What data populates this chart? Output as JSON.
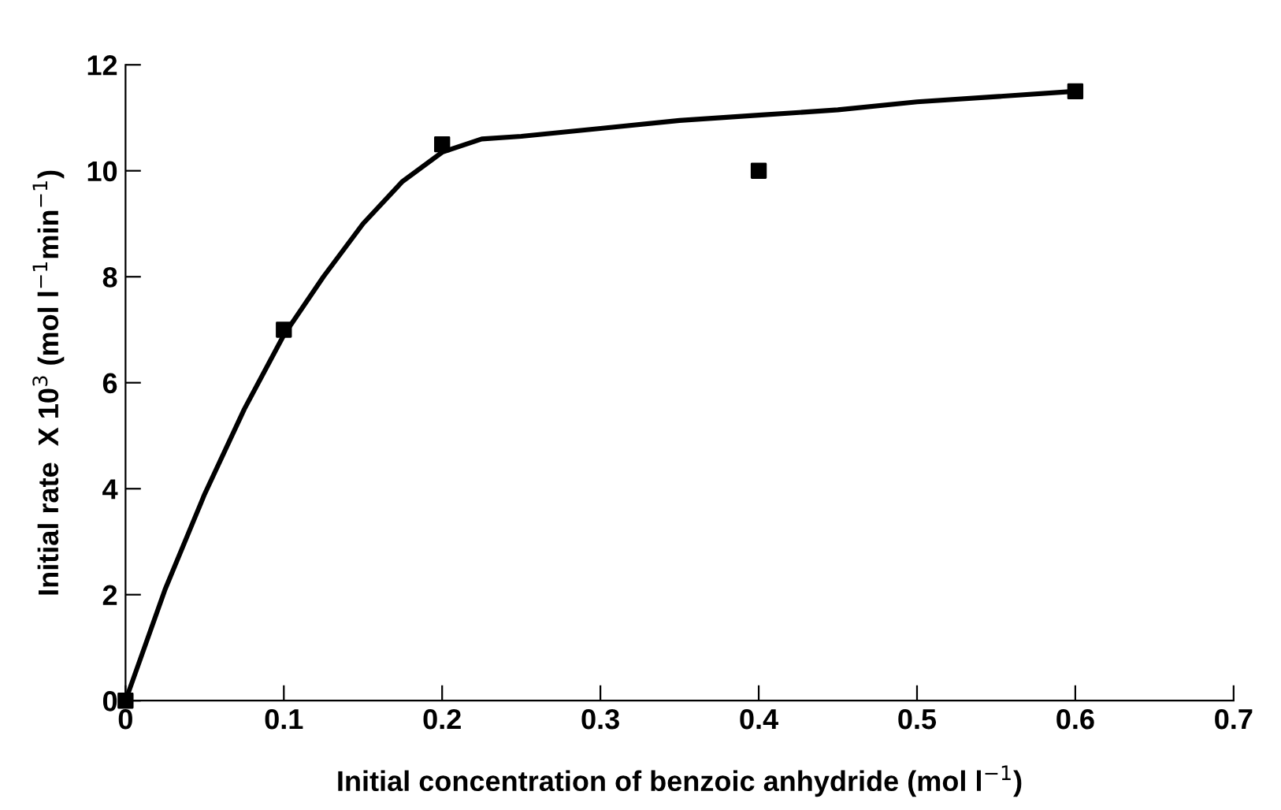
{
  "chart_data": {
    "type": "scatter",
    "xlabel": "Initial concentration of benzoic anhydride (mol l$^{−1}$)",
    "ylabel": "Initial rate  X 10$^{3}$ (mol l$^{−1}$min$^{−1}$)",
    "series": [
      {
        "color": "#000000",
        "marker": "square",
        "x": [
          0,
          0.1,
          0.2,
          0.4,
          0.6
        ],
        "values": [
          0,
          7,
          10.5,
          10,
          11.5
        ]
      },
      {
        "type": "line",
        "color": "#000000",
        "marker": "none",
        "line_style": "solid",
        "x": [
          0,
          0.025,
          0.05,
          0.075,
          0.1,
          0.125,
          0.15,
          0.175,
          0.2,
          0.225,
          0.25,
          0.3,
          0.35,
          0.4,
          0.45,
          0.5,
          0.55,
          0.6
        ],
        "values": [
          0,
          2.1,
          3.9,
          5.5,
          6.9,
          8.0,
          9.0,
          9.8,
          10.35,
          10.6,
          10.65,
          10.8,
          10.95,
          11.05,
          11.15,
          11.3,
          11.4,
          11.5
        ]
      }
    ],
    "xlim": [
      0,
      0.7
    ],
    "xticks": [
      0,
      0.1,
      0.2,
      0.3,
      0.4,
      0.5,
      0.6,
      0.7
    ],
    "ylim": [
      0,
      12
    ],
    "yticks": [
      0,
      2,
      4,
      6,
      8,
      10,
      12
    ],
    "grid": false
  }
}
